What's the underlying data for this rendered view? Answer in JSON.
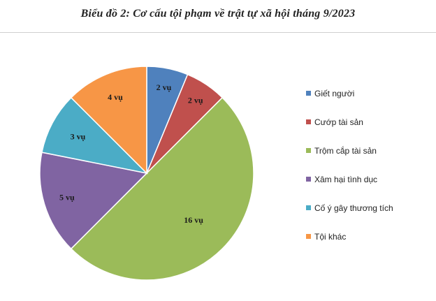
{
  "title": "Biểu đồ 2: Cơ cấu tội phạm về trật tự xã hội tháng 9/2023",
  "chart_data": {
    "type": "pie",
    "title": "Biểu đồ 2: Cơ cấu tội phạm về trật tự xã hội tháng 9/2023",
    "categories": [
      "Giết người",
      "Cướp tài sản",
      "Trộm cắp tài sản",
      "Xâm hại tình dục",
      "Cố ý gây thương tích",
      "Tội khác"
    ],
    "values": [
      2,
      2,
      16,
      5,
      3,
      4
    ],
    "data_labels": [
      "2 vụ",
      "2 vụ",
      "16 vụ",
      "5 vụ",
      "3 vụ",
      "4 vụ"
    ],
    "colors": [
      "#4F81BD",
      "#C0504D",
      "#9BBB59",
      "#8064A2",
      "#4BACC6",
      "#F79646"
    ],
    "start": "12 o'clock, clockwise",
    "legend_position": "right"
  }
}
